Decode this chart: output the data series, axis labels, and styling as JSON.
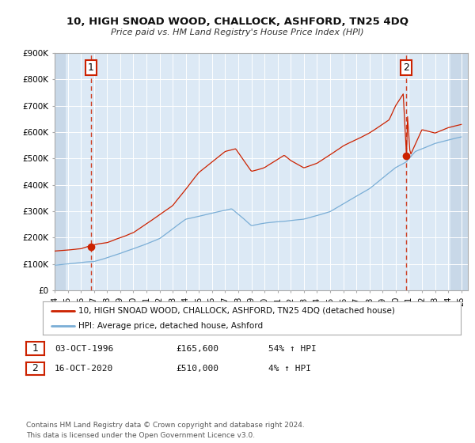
{
  "title": "10, HIGH SNOAD WOOD, CHALLOCK, ASHFORD, TN25 4DQ",
  "subtitle": "Price paid vs. HM Land Registry's House Price Index (HPI)",
  "ylim": [
    0,
    900000
  ],
  "yticks": [
    0,
    100000,
    200000,
    300000,
    400000,
    500000,
    600000,
    700000,
    800000,
    900000
  ],
  "ytick_labels": [
    "£0",
    "£100K",
    "£200K",
    "£300K",
    "£400K",
    "£500K",
    "£600K",
    "£700K",
    "£800K",
    "£900K"
  ],
  "sale1_date": 1996.75,
  "sale1_price": 165600,
  "sale2_date": 2020.79,
  "sale2_price": 510000,
  "hpi_color": "#7aaed6",
  "price_color": "#cc2200",
  "sale_dot_color": "#cc2200",
  "vline_color": "#cc2200",
  "plot_bg_color": "#dce9f5",
  "legend_line1": "10, HIGH SNOAD WOOD, CHALLOCK, ASHFORD, TN25 4DQ (detached house)",
  "legend_line2": "HPI: Average price, detached house, Ashford",
  "table_row1": [
    "1",
    "03-OCT-1996",
    "£165,600",
    "54% ↑ HPI"
  ],
  "table_row2": [
    "2",
    "16-OCT-2020",
    "£510,000",
    "4% ↑ HPI"
  ],
  "footnote": "Contains HM Land Registry data © Crown copyright and database right 2024.\nThis data is licensed under the Open Government Licence v3.0."
}
